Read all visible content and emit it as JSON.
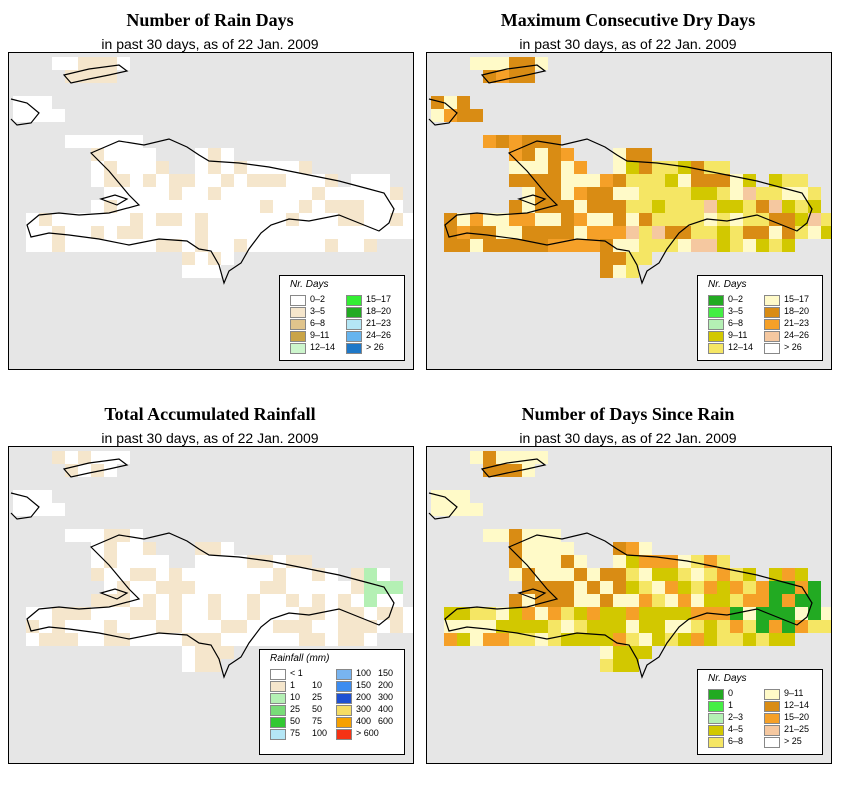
{
  "panels": [
    {
      "title": "Number of Rain Days",
      "subtitle": "in past 30 days, as of  22 Jan. 2009",
      "legend_title": "Nr. Days",
      "legend_items": [
        {
          "label": "0–2",
          "color": "#ffffff"
        },
        {
          "label": "3–5",
          "color": "#f5e6cc"
        },
        {
          "label": "6–8",
          "color": "#e0c48c"
        },
        {
          "label": "9–11",
          "color": "#c9a447"
        },
        {
          "label": "12–14",
          "color": "#ccf5cc"
        },
        {
          "label": "15–17",
          "color": "#33ee33"
        },
        {
          "label": "18–20",
          "color": "#22aa22"
        },
        {
          "label": "21–23",
          "color": "#b4e6f5"
        },
        {
          "label": "24–26",
          "color": "#66b4ee"
        },
        {
          "label": "> 26",
          "color": "#1e78c8"
        }
      ]
    },
    {
      "title": "Maximum Consecutive Dry Days",
      "subtitle": "in past 30 days, as of  22 Jan. 2009",
      "legend_title": "Nr. Days",
      "legend_items": [
        {
          "label": "0–2",
          "color": "#22aa22"
        },
        {
          "label": "3–5",
          "color": "#44ee44"
        },
        {
          "label": "6–8",
          "color": "#b4f0b4"
        },
        {
          "label": "9–11",
          "color": "#d2c800"
        },
        {
          "label": "12–14",
          "color": "#f5e664"
        },
        {
          "label": "15–17",
          "color": "#fffac8"
        },
        {
          "label": "18–20",
          "color": "#d98c14"
        },
        {
          "label": "21–23",
          "color": "#f5a028"
        },
        {
          "label": "24–26",
          "color": "#f5c8a0"
        },
        {
          "label": "> 26",
          "color": "#ffffff"
        }
      ]
    },
    {
      "title": "Total Accumulated Rainfall",
      "subtitle": "in past 30 days, as of  22 Jan. 2009",
      "legend_title": "Rainfall (mm)",
      "legend_items": [
        {
          "label": "< 1",
          "color": "#ffffff"
        },
        {
          "label": "1",
          "label2": "10",
          "color": "#f5e6cc"
        },
        {
          "label": "10",
          "label2": "25",
          "color": "#b4f0b4"
        },
        {
          "label": "25",
          "label2": "50",
          "color": "#78dc78"
        },
        {
          "label": "50",
          "label2": "75",
          "color": "#32c832"
        },
        {
          "label": "75",
          "label2": "100",
          "color": "#b4e6f5"
        },
        {
          "label": "100",
          "label2": "150",
          "color": "#78b4f0"
        },
        {
          "label": "150",
          "label2": "200",
          "color": "#3c8cf0"
        },
        {
          "label": "200",
          "label2": "300",
          "color": "#1e50d2"
        },
        {
          "label": "300",
          "label2": "400",
          "color": "#f5dc64"
        },
        {
          "label": "400",
          "label2": "600",
          "color": "#f5a000"
        },
        {
          "label": "> 600",
          "color": "#f53214"
        }
      ]
    },
    {
      "title": "Number of Days Since Rain",
      "subtitle": "in past 30 days, as of  22 Jan. 2009",
      "legend_title": "Nr. Days",
      "legend_items": [
        {
          "label": "0",
          "color": "#22aa22"
        },
        {
          "label": "1",
          "color": "#44ee44"
        },
        {
          "label": "2–3",
          "color": "#b4f0b4"
        },
        {
          "label": "4–5",
          "color": "#d2c800"
        },
        {
          "label": "6–8",
          "color": "#f5e664"
        },
        {
          "label": "9–11",
          "color": "#fffac8"
        },
        {
          "label": "12–14",
          "color": "#d98c14"
        },
        {
          "label": "15–20",
          "color": "#f5a028"
        },
        {
          "label": "21–25",
          "color": "#f5c8a0"
        },
        {
          "label": "> 25",
          "color": "#ffffff"
        }
      ]
    }
  ]
}
